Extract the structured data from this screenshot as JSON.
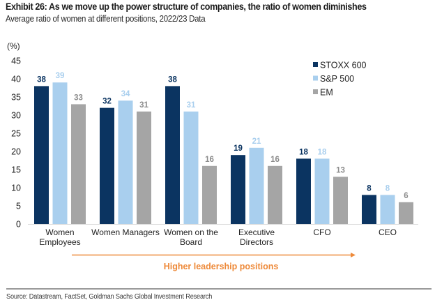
{
  "header": {
    "title": "Exhibit 26: As we move up the power structure of companies, the ratio of women diminishes",
    "subtitle": "Average ratio of women at different positions, 2022/23 Data"
  },
  "footer": {
    "source": "Source: Datastream, FactSet, Goldman Sachs Global Investment Research"
  },
  "chart_data": {
    "type": "bar",
    "title": "Exhibit 26: As we move up the power structure of companies, the ratio of women diminishes",
    "subtitle": "Average ratio of women at different positions, 2022/23 Data",
    "xlabel": "",
    "ylabel": "(%)",
    "ylim": [
      0,
      45
    ],
    "yticks": [
      0,
      5,
      10,
      15,
      20,
      25,
      30,
      35,
      40,
      45
    ],
    "grid": false,
    "legend_position": "right",
    "categories": [
      [
        "Women",
        "Employees"
      ],
      [
        "Women Managers"
      ],
      [
        "Women on the",
        "Board"
      ],
      [
        "Executive",
        "Directors"
      ],
      [
        "CFO"
      ],
      [
        "CEO"
      ]
    ],
    "series": [
      {
        "name": "STOXX 600",
        "color": "#0b3461",
        "label_color": "#0b3461",
        "values": [
          38,
          32,
          38,
          19,
          18,
          8
        ]
      },
      {
        "name": "S&P 500",
        "color": "#a9cfee",
        "label_color": "#a9cfee",
        "values": [
          39,
          34,
          31,
          21,
          18,
          8
        ]
      },
      {
        "name": "EM",
        "color": "#a5a5a5",
        "label_color": "#8c8c8c",
        "values": [
          33,
          31,
          16,
          16,
          13,
          6
        ]
      }
    ],
    "annotation": {
      "text": "Higher leadership positions",
      "color": "#ee8a3a",
      "type": "arrow-right"
    }
  }
}
